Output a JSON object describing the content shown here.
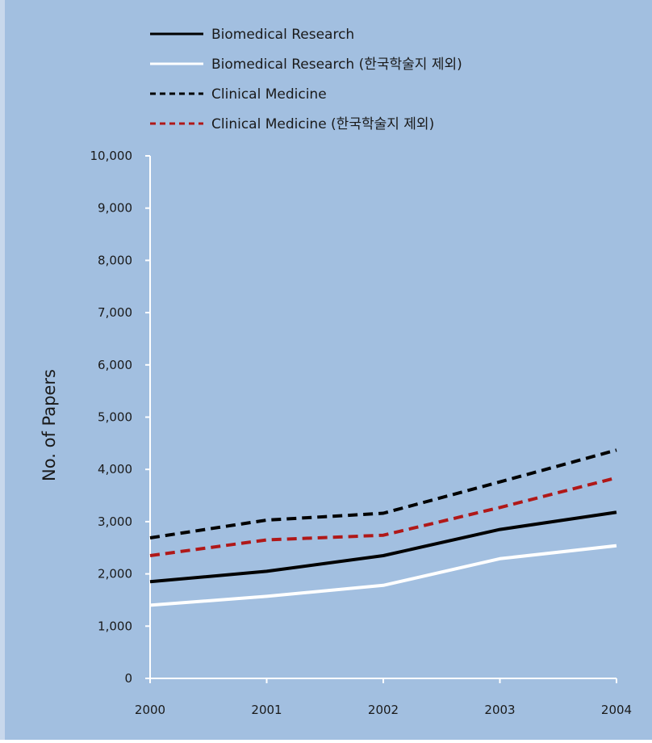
{
  "chart_data": {
    "type": "line",
    "title": "",
    "xlabel": "",
    "ylabel": "No. of Papers",
    "x": [
      "2000",
      "2001",
      "2002",
      "2003",
      "2004"
    ],
    "ylim": [
      0,
      10000
    ],
    "yticks": [
      "0",
      "1,000",
      "2,000",
      "3,000",
      "4,000",
      "5,000",
      "6,000",
      "7,000",
      "8,000",
      "9,000",
      "10,000"
    ],
    "grid": false,
    "legend_position": "top-left",
    "background_color": "#a2bfe0",
    "series": [
      {
        "name": "Biomedical Research",
        "values": [
          1850,
          2050,
          2350,
          2850,
          3180
        ],
        "color": "#000000",
        "dashed": false
      },
      {
        "name": "Biomedical Research (한국학술지 제외)",
        "values": [
          1400,
          1570,
          1780,
          2290,
          2540
        ],
        "color": "#ffffff",
        "dashed": false
      },
      {
        "name": "Clinical Medicine",
        "values": [
          2690,
          3030,
          3160,
          3760,
          4370
        ],
        "color": "#000000",
        "dashed": true
      },
      {
        "name": "Clinical Medicine  (한국학술지 제외)",
        "values": [
          2350,
          2650,
          2740,
          3270,
          3840
        ],
        "color": "#b01818",
        "dashed": true
      }
    ]
  }
}
